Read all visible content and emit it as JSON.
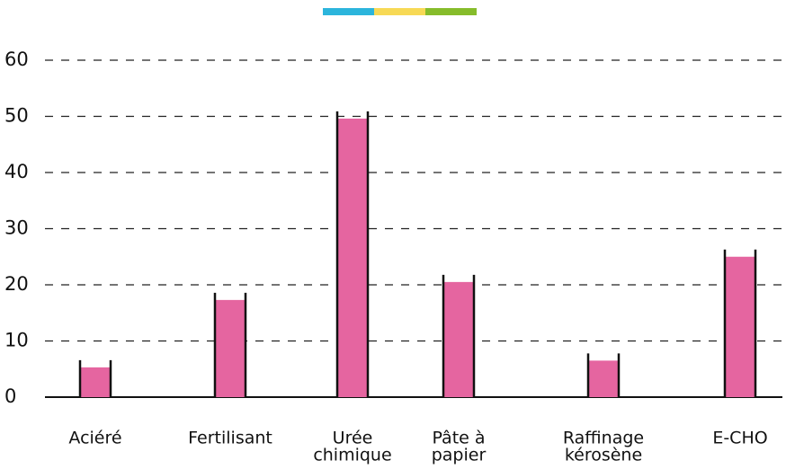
{
  "chart_data": {
    "type": "bar",
    "categories": [
      "Aciéré",
      "Fertilisant",
      [
        "Urée",
        "chimique"
      ],
      [
        "Pâte à",
        "papier"
      ],
      [
        "Raffinage",
        "kérosène"
      ],
      "E-CHO"
    ],
    "values": [
      5.3,
      17.3,
      49.6,
      20.5,
      6.5,
      25
    ],
    "color": "#e565a0",
    "ylim": [
      0,
      60
    ],
    "yticks": [
      0,
      10,
      20,
      30,
      40,
      50,
      60
    ],
    "grid": true
  }
}
